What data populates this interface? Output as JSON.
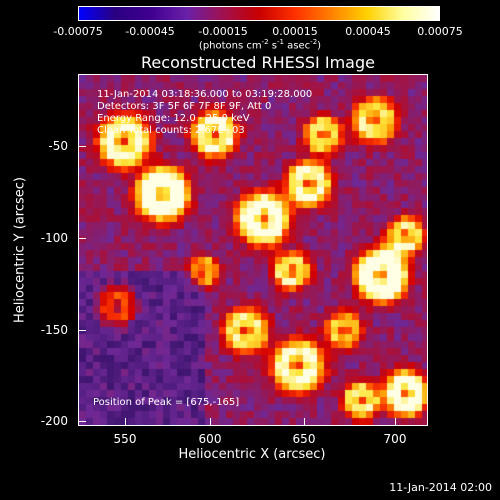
{
  "colorbar": {
    "tick_labels": [
      "-0.00075",
      "-0.00045",
      "-0.00015",
      "0.00015",
      "0.00045",
      "0.00075"
    ],
    "units_text": "(photons cm",
    "units_exp1": "-2",
    "units_mid": " s",
    "units_exp2": "-1",
    "units_mid2": " asec",
    "units_exp3": "-2",
    "units_end": ")",
    "colors": [
      "#0000ff",
      "#2a0080",
      "#400090",
      "#6a20a8",
      "#a01050",
      "#c80000",
      "#ff3000",
      "#ff8000",
      "#ffd000",
      "#ffffa0",
      "#ffffff"
    ]
  },
  "title": "Reconstructed RHESSI Image",
  "annotations": {
    "time_range": "11-Jan-2014 03:18:36.000 to 03:19:28.000",
    "detectors": "Detectors: 3F 5F 6F 7F 8F 9F, Att 0",
    "energy": "Energy Range: 12.0 - 25.0 keV",
    "method": "Clean     Total counts: 2.67E+03",
    "peak": "Position of Peak = [675,-165]"
  },
  "axes": {
    "xlabel": "Heliocentric X (arcsec)",
    "ylabel": "Heliocentric Y (arcsec)",
    "xticks": [
      "550",
      "600",
      "650",
      "700"
    ],
    "yticks": [
      "-50",
      "-100",
      "-150",
      "-200"
    ],
    "xrange": [
      525,
      715
    ],
    "yrange": [
      -202,
      -12
    ]
  },
  "footer_date": "11-Jan-2014 02:00"
}
